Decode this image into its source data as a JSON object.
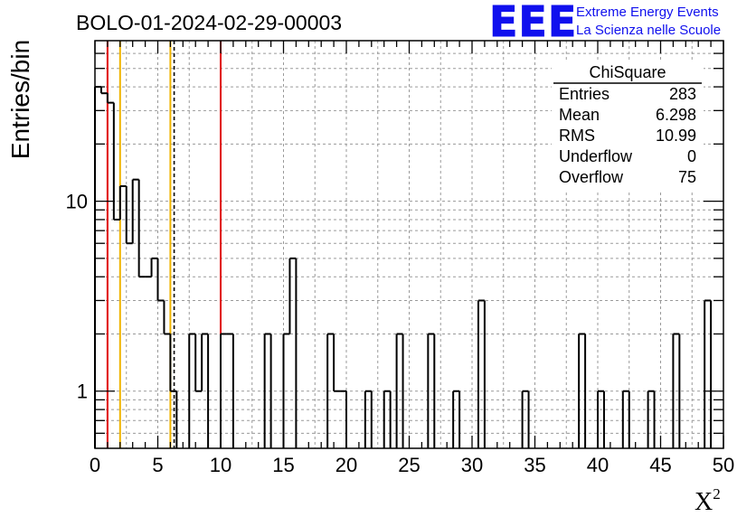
{
  "chart_data": {
    "type": "bar",
    "title": "BOLO-01-2024-02-29-00003",
    "xlabel": "X",
    "xlabel_superscript": "2",
    "ylabel": "Entries/bin",
    "xlim": [
      0,
      50
    ],
    "ylim": [
      0.5,
      70
    ],
    "yscale": "log",
    "grid": true,
    "bin_width": 0.5,
    "x_ticks": [
      "0",
      "5",
      "10",
      "15",
      "20",
      "25",
      "30",
      "35",
      "40",
      "45",
      "50"
    ],
    "y_ticks": [
      "1",
      "10"
    ],
    "bins": [
      {
        "x": 0.0,
        "value": 40
      },
      {
        "x": 0.5,
        "value": 37
      },
      {
        "x": 1.0,
        "value": 33
      },
      {
        "x": 1.5,
        "value": 8
      },
      {
        "x": 2.0,
        "value": 12
      },
      {
        "x": 2.5,
        "value": 6
      },
      {
        "x": 3.0,
        "value": 13
      },
      {
        "x": 3.5,
        "value": 4
      },
      {
        "x": 4.0,
        "value": 4
      },
      {
        "x": 4.5,
        "value": 5
      },
      {
        "x": 5.0,
        "value": 3
      },
      {
        "x": 5.5,
        "value": 2
      },
      {
        "x": 6.0,
        "value": 1
      },
      {
        "x": 6.5,
        "value": 0
      },
      {
        "x": 7.0,
        "value": 0
      },
      {
        "x": 7.5,
        "value": 2
      },
      {
        "x": 8.0,
        "value": 1
      },
      {
        "x": 8.5,
        "value": 2
      },
      {
        "x": 9.0,
        "value": 0
      },
      {
        "x": 9.5,
        "value": 0
      },
      {
        "x": 10.0,
        "value": 2
      },
      {
        "x": 10.5,
        "value": 2
      },
      {
        "x": 13.5,
        "value": 2
      },
      {
        "x": 15.0,
        "value": 2
      },
      {
        "x": 15.5,
        "value": 5
      },
      {
        "x": 18.5,
        "value": 2
      },
      {
        "x": 19.0,
        "value": 1
      },
      {
        "x": 19.5,
        "value": 1
      },
      {
        "x": 21.5,
        "value": 1
      },
      {
        "x": 23.0,
        "value": 1
      },
      {
        "x": 24.0,
        "value": 2
      },
      {
        "x": 26.5,
        "value": 2
      },
      {
        "x": 28.5,
        "value": 1
      },
      {
        "x": 30.5,
        "value": 3
      },
      {
        "x": 34.0,
        "value": 1
      },
      {
        "x": 38.5,
        "value": 2
      },
      {
        "x": 40.0,
        "value": 1
      },
      {
        "x": 42.0,
        "value": 1
      },
      {
        "x": 44.0,
        "value": 1
      },
      {
        "x": 46.0,
        "value": 2
      },
      {
        "x": 48.5,
        "value": 3
      }
    ],
    "vertical_lines": [
      {
        "x": 1.0,
        "color": "#e00000",
        "style": "solid"
      },
      {
        "x": 2.0,
        "color": "#f0b400",
        "style": "solid"
      },
      {
        "x": 6.0,
        "color": "#f0b400",
        "style": "solid"
      },
      {
        "x": 6.3,
        "color": "#000000",
        "style": "dashed"
      },
      {
        "x": 10.0,
        "color": "#e00000",
        "style": "solid"
      }
    ],
    "stats_box": {
      "name": "ChiSquare",
      "rows": [
        {
          "label": "Entries",
          "value": "283"
        },
        {
          "label": "Mean",
          "value": "6.298"
        },
        {
          "label": "RMS",
          "value": "10.99"
        },
        {
          "label": "Underflow",
          "value": "0"
        },
        {
          "label": "Overflow",
          "value": "75"
        }
      ]
    }
  },
  "logo": {
    "mark": "EEE",
    "line1": "Extreme Energy Events",
    "line2": "La Scienza nelle Scuole"
  }
}
